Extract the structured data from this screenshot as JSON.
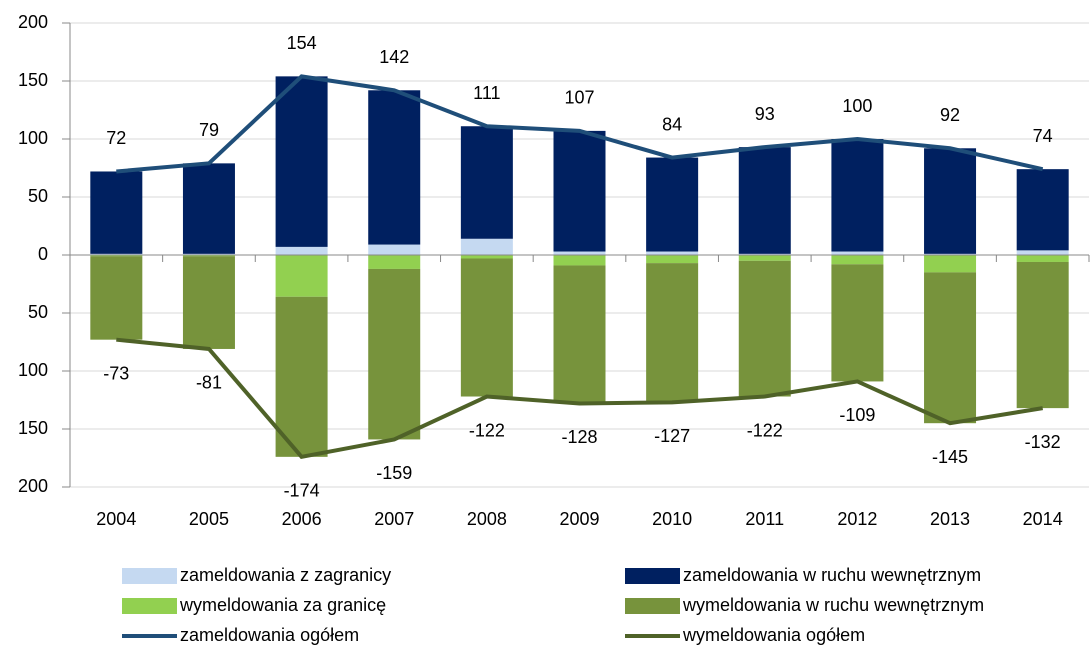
{
  "chart_data": {
    "type": "bar",
    "categories": [
      "2004",
      "2005",
      "2006",
      "2007",
      "2008",
      "2009",
      "2010",
      "2011",
      "2012",
      "2013",
      "2014"
    ],
    "series": [
      {
        "name": "zameldowania z zagranicy",
        "type": "bar",
        "color": "#c5d9f1",
        "values": [
          1,
          1,
          7,
          9,
          14,
          3,
          3,
          1,
          3,
          1,
          4
        ]
      },
      {
        "name": "zameldowania w ruchu wewnętrznym",
        "type": "bar",
        "color": "#002060",
        "values": [
          71,
          78,
          147,
          133,
          97,
          104,
          81,
          92,
          97,
          91,
          70
        ]
      },
      {
        "name": "wymeldowania za granicę",
        "type": "bar",
        "color": "#92d050",
        "values": [
          -1,
          -1,
          -36,
          -12,
          -3,
          -9,
          -7,
          -5,
          -8,
          -15,
          -6
        ]
      },
      {
        "name": "wymeldowania w ruchu wewnętrznym",
        "type": "bar",
        "color": "#77933c",
        "values": [
          -72,
          -80,
          -138,
          -147,
          -119,
          -119,
          -120,
          -117,
          -101,
          -130,
          -126
        ]
      },
      {
        "name": "zameldowania ogółem",
        "type": "line",
        "color": "#1f4e79",
        "values": [
          72,
          79,
          154,
          142,
          111,
          107,
          84,
          93,
          100,
          92,
          74
        ]
      },
      {
        "name": "wymeldowania ogółem",
        "type": "line",
        "color": "#4f6228",
        "values": [
          -73,
          -81,
          -174,
          -159,
          -122,
          -128,
          -127,
          -122,
          -109,
          -145,
          -132
        ]
      }
    ],
    "ylim": [
      -200,
      200
    ],
    "yticks": [
      {
        "value": -200,
        "label": "200"
      },
      {
        "value": -150,
        "label": "150"
      },
      {
        "value": -100,
        "label": "100"
      },
      {
        "value": -50,
        "label": "50"
      },
      0,
      50,
      100,
      150,
      200
    ],
    "grid": true,
    "data_labels": true,
    "legend": "bottom"
  }
}
